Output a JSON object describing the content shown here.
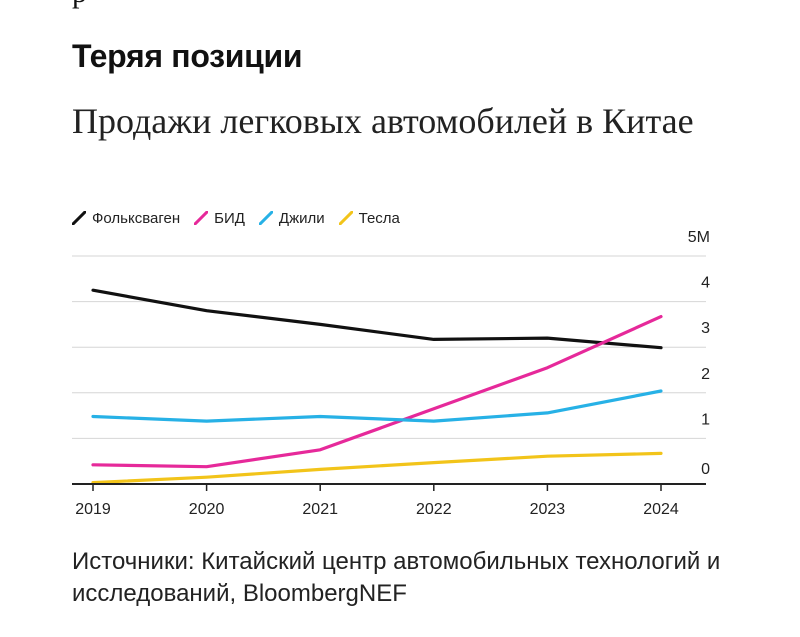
{
  "top_mark": "р",
  "title": "Теряя позиции",
  "subtitle": "Продажи легковых автомобилей в Китае",
  "source": "Источники: Китайский центр автомобильных технологий и исследований, BloombergNEF",
  "colors": {
    "volkswagen": "#111111",
    "byd": "#e6299a",
    "geely": "#27b1e6",
    "tesla": "#f2c41a",
    "grid": "#d6d6d6",
    "axis": "#222222"
  },
  "chart_data": {
    "type": "line",
    "title": "Продажи легковых автомобилей в Китае",
    "x": [
      2019,
      2020,
      2021,
      2022,
      2023,
      2024
    ],
    "x_tick_labels": [
      "2019",
      "2020",
      "2021",
      "2022",
      "2023",
      "2024"
    ],
    "y_ticks": [
      0,
      1,
      2,
      3,
      4,
      5
    ],
    "y_tick_labels": [
      "0",
      "1",
      "2",
      "3",
      "4",
      "5M"
    ],
    "ylim": [
      0,
      5
    ],
    "grid": true,
    "legend_position": "top-left",
    "series": [
      {
        "name": "Фольксваген",
        "color_key": "volkswagen",
        "values": [
          4.25,
          3.8,
          3.5,
          3.17,
          3.2,
          2.99
        ]
      },
      {
        "name": "БИД",
        "color_key": "byd",
        "values": [
          0.42,
          0.38,
          0.75,
          1.65,
          2.55,
          3.67
        ]
      },
      {
        "name": "Джили",
        "color_key": "geely",
        "values": [
          1.48,
          1.38,
          1.48,
          1.38,
          1.56,
          2.04
        ]
      },
      {
        "name": "Тесла",
        "color_key": "tesla",
        "values": [
          0.03,
          0.15,
          0.32,
          0.47,
          0.61,
          0.67
        ]
      }
    ]
  }
}
